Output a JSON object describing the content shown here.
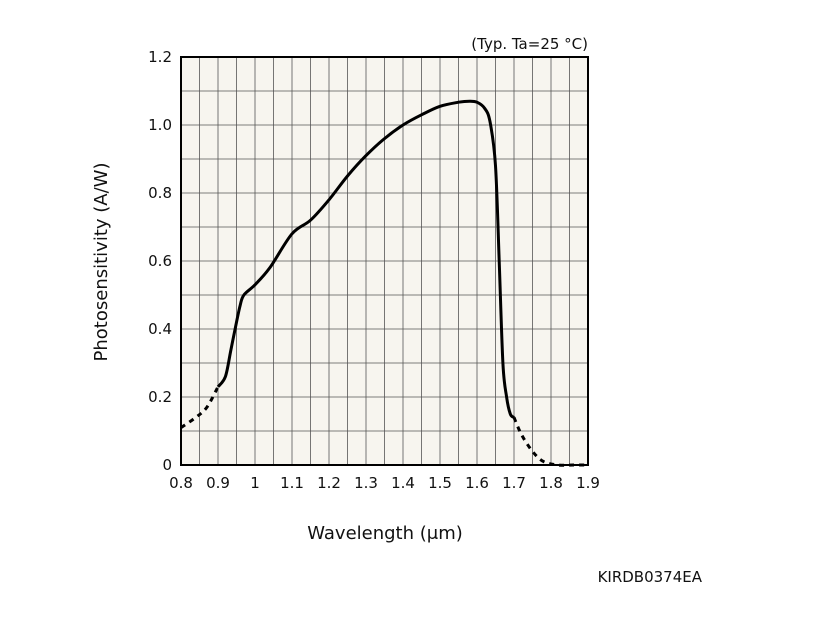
{
  "chart_data": {
    "type": "line",
    "title": "",
    "condition_note": "(Typ. Ta=25 °C)",
    "xlabel": "Wavelength (μm)",
    "ylabel": "Photosensitivity (A/W)",
    "figure_code": "KIRDB0374EA",
    "xlim": [
      0.8,
      1.9
    ],
    "ylim": [
      0,
      1.2
    ],
    "x_ticks": [
      "0.8",
      "0.9",
      "1",
      "1.1",
      "1.2",
      "1.3",
      "1.4",
      "1.5",
      "1.6",
      "1.7",
      "1.8",
      "1.9"
    ],
    "y_ticks": [
      "0",
      "0.2",
      "0.4",
      "0.6",
      "0.8",
      "1.0",
      "1.2"
    ],
    "grid": true,
    "plot_background": "#f7f5ef",
    "line_color": "#000000",
    "series": [
      {
        "style": "dashed",
        "x": [
          0.8,
          0.84,
          0.87,
          0.9
        ],
        "y": [
          0.11,
          0.14,
          0.17,
          0.23
        ]
      },
      {
        "style": "solid",
        "x": [
          0.9,
          0.92,
          0.935,
          0.95,
          0.96,
          0.97,
          1.0,
          1.04,
          1.1,
          1.15,
          1.2,
          1.25,
          1.3,
          1.35,
          1.4,
          1.45,
          1.5,
          1.55,
          1.58,
          1.6,
          1.62,
          1.635,
          1.65,
          1.66,
          1.67,
          1.68,
          1.69,
          1.7
        ],
        "y": [
          0.23,
          0.26,
          0.34,
          0.42,
          0.47,
          0.5,
          0.53,
          0.58,
          0.68,
          0.72,
          0.78,
          0.85,
          0.91,
          0.96,
          1.0,
          1.03,
          1.055,
          1.067,
          1.07,
          1.067,
          1.05,
          1.01,
          0.88,
          0.6,
          0.3,
          0.2,
          0.15,
          0.14
        ]
      },
      {
        "style": "dashed",
        "x": [
          1.7,
          1.72,
          1.75,
          1.78,
          1.82,
          1.86,
          1.9
        ],
        "y": [
          0.14,
          0.09,
          0.04,
          0.01,
          0.0,
          0.0,
          0.0
        ]
      }
    ]
  }
}
